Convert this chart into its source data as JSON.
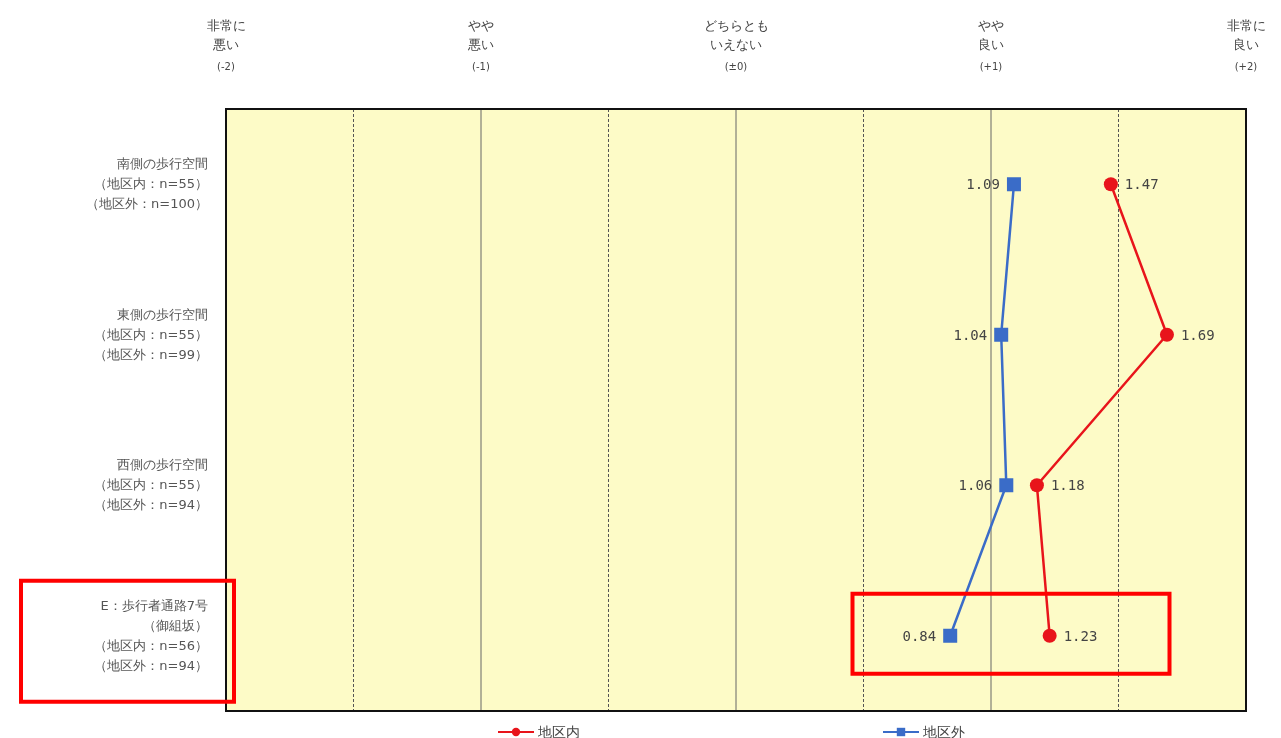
{
  "chart_data": {
    "type": "line",
    "orientation": "horizontal",
    "categories": [
      "南側の歩行空間（地区内：n=55）（地区外：n=100）",
      "東側の歩行空間（地区内：n=55）（地区外：n=99）",
      "西側の歩行空間（地区内：n=55）（地区外：n=94）",
      "E：歩行者通路7号（御組坂）（地区内：n=56）（地区外：n=94）"
    ],
    "series": [
      {
        "name": "地区内",
        "color": "#e8141b",
        "marker": "circle",
        "values": [
          1.47,
          1.69,
          1.18,
          1.23
        ]
      },
      {
        "name": "地区外",
        "color": "#3a6cc8",
        "marker": "square",
        "values": [
          1.09,
          1.04,
          1.06,
          0.84
        ]
      }
    ],
    "xlim": [
      -2,
      2
    ],
    "xticks": [
      {
        "value": -2,
        "label": "非常に悪い$_{(-2)}$"
      },
      {
        "value": -1.5,
        "label": null
      },
      {
        "value": -1,
        "label": "やや悪い$_{(-1)}$"
      },
      {
        "value": -0.5,
        "label": null
      },
      {
        "value": 0,
        "label": "どちらともいえない$_{(±0)}$"
      },
      {
        "value": 0.5,
        "label": null
      },
      {
        "value": 1,
        "label": "やや良い$_{(+1)}$"
      },
      {
        "value": 1.5,
        "label": null
      },
      {
        "value": 2,
        "label": "非常に良い$_{(+2)}$"
      }
    ],
    "grid": "x",
    "data_labels": true,
    "legend": "bottom"
  }
}
